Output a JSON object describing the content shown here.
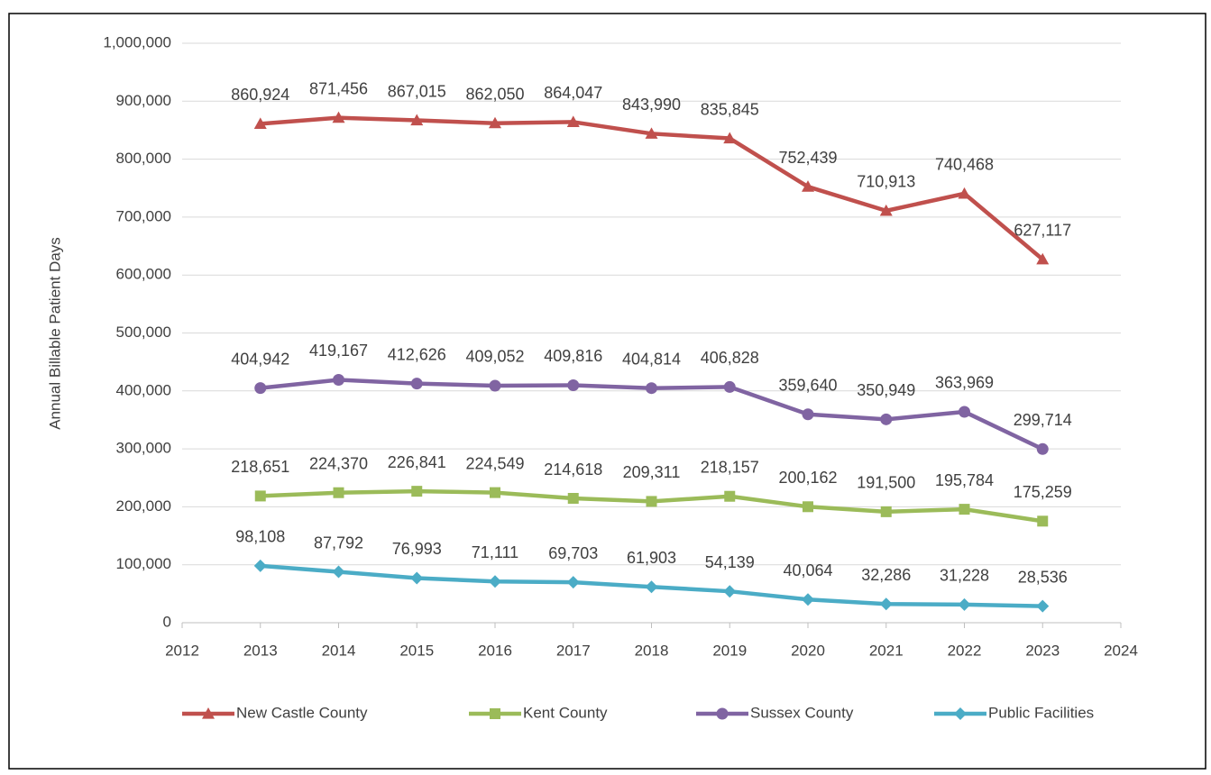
{
  "chart_data": {
    "type": "line",
    "y_label": "Annual Billable Patient Days",
    "x": [
      2013,
      2014,
      2015,
      2016,
      2017,
      2018,
      2019,
      2020,
      2021,
      2022,
      2023
    ],
    "xlim": [
      2012,
      2024
    ],
    "xticks": [
      2012,
      2013,
      2014,
      2015,
      2016,
      2017,
      2018,
      2019,
      2020,
      2021,
      2022,
      2023,
      2024
    ],
    "ylim": [
      0,
      1000000
    ],
    "yticks": [
      0,
      {
        "value": 100000,
        "label": "100,000"
      },
      {
        "value": 200000,
        "label": "200,000"
      },
      {
        "value": 300000,
        "label": "300,000"
      },
      {
        "value": 400000,
        "label": "400,000"
      },
      {
        "value": 500000,
        "label": "500,000"
      },
      {
        "value": 600000,
        "label": "600,000"
      },
      {
        "value": 700000,
        "label": "700,000"
      },
      {
        "value": 800000,
        "label": "800,000"
      },
      {
        "value": 900000,
        "label": "900,000"
      },
      {
        "value": 1000000,
        "label": "1,000,000"
      }
    ],
    "grid": true,
    "legend": "bottom",
    "series": [
      {
        "name": "New Castle County",
        "color": "#c0504d",
        "marker": "triangle",
        "values": [
          860924,
          871456,
          867015,
          862050,
          864047,
          843990,
          835845,
          752439,
          710913,
          740468,
          627117
        ],
        "value_labels": [
          "860,924",
          "871,456",
          "867,015",
          "862,050",
          "864,047",
          "843,990",
          "835,845",
          "752,439",
          "710,913",
          "740,468",
          "627,117"
        ]
      },
      {
        "name": "Kent County",
        "color": "#9bbb59",
        "marker": "square",
        "values": [
          218651,
          224370,
          226841,
          224549,
          214618,
          209311,
          218157,
          200162,
          191500,
          195784,
          175259
        ],
        "value_labels": [
          "218,651",
          "224,370",
          "226,841",
          "224,549",
          "214,618",
          "209,311",
          "218,157",
          "200,162",
          "191,500",
          "195,784",
          "175,259"
        ]
      },
      {
        "name": "Sussex County",
        "color": "#8064a2",
        "marker": "circle",
        "values": [
          404942,
          419167,
          412626,
          409052,
          409816,
          404814,
          406828,
          359640,
          350949,
          363969,
          299714
        ],
        "value_labels": [
          "404,942",
          "419,167",
          "412,626",
          "409,052",
          "409,816",
          "404,814",
          "406,828",
          "359,640",
          "350,949",
          "363,969",
          "299,714"
        ]
      },
      {
        "name": "Public Facilities",
        "color": "#4bacc6",
        "marker": "diamond",
        "values": [
          98108,
          87792,
          76993,
          71111,
          69703,
          61903,
          54139,
          40064,
          32286,
          31228,
          28536
        ],
        "value_labels": [
          "98,108",
          "87,792",
          "76,993",
          "71,111",
          "69,703",
          "61,903",
          "54,139",
          "40,064",
          "32,286",
          "31,228",
          "28,536"
        ]
      }
    ]
  }
}
